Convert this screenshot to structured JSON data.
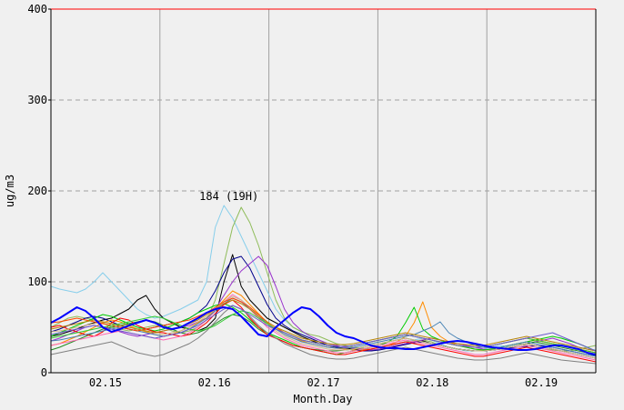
{
  "chart_data": {
    "type": "line",
    "xlabel": "Month.Day",
    "ylabel": "ug/m3",
    "ylim": [
      0,
      400
    ],
    "yticks": [
      "0",
      "100",
      "200",
      "300",
      "400"
    ],
    "xlim": [
      0,
      5
    ],
    "xticks": [
      {
        "label": "02.15",
        "pos": 0.5
      },
      {
        "label": "02.16",
        "pos": 1.5
      },
      {
        "label": "02.17",
        "pos": 2.5
      },
      {
        "label": "02.18",
        "pos": 3.5
      },
      {
        "label": "02.19",
        "pos": 4.5
      }
    ],
    "day_separators": [
      1,
      2,
      3,
      4
    ],
    "grid": true,
    "annotation": {
      "text": "184 (19H)",
      "x": 1.65,
      "y": 184
    },
    "colors": {
      "background": "#f0f0f0",
      "plot_background": "#f0f0f0",
      "max_line": "#ff0000",
      "vertical_grid": "#a0a0a0",
      "horizontal_grid": "#a0a0a0",
      "mean_series": "#0000ff"
    },
    "series": [
      {
        "color": "#0000ff",
        "values": [
          55,
          60,
          66,
          72,
          68,
          60,
          50,
          45,
          48,
          52,
          55,
          58,
          55,
          50,
          48,
          50,
          55,
          60,
          66,
          70,
          72,
          70,
          62,
          52,
          42,
          40,
          50,
          58,
          66,
          72,
          70,
          62,
          52,
          44,
          40,
          38,
          34,
          30,
          28,
          27,
          27,
          26,
          26,
          28,
          30,
          32,
          34,
          35,
          34,
          32,
          30,
          28,
          27,
          26,
          25,
          25,
          26,
          28,
          30,
          30,
          28,
          26,
          22,
          20
        ]
      },
      {
        "color": "#87ceeb",
        "values": [
          95,
          92,
          90,
          88,
          92,
          100,
          110,
          100,
          90,
          80,
          70,
          64,
          60,
          62,
          66,
          70,
          75,
          80,
          100,
          160,
          184,
          170,
          150,
          130,
          110,
          90,
          70,
          58,
          50,
          45,
          40,
          36,
          32,
          30,
          28,
          27,
          26,
          26,
          28,
          30,
          32,
          34,
          36,
          38,
          36,
          32,
          28,
          26,
          24,
          24,
          26,
          28,
          30,
          28,
          26,
          25,
          26,
          28,
          30,
          32,
          30,
          28,
          26,
          25
        ]
      },
      {
        "color": "#8fbc5a",
        "values": [
          50,
          55,
          60,
          62,
          60,
          58,
          55,
          50,
          48,
          46,
          48,
          50,
          52,
          50,
          46,
          44,
          46,
          50,
          58,
          80,
          120,
          160,
          182,
          165,
          140,
          110,
          80,
          60,
          50,
          45,
          42,
          40,
          36,
          32,
          30,
          28,
          27,
          26,
          28,
          30,
          32,
          34,
          35,
          36,
          34,
          30,
          28,
          26,
          25,
          24,
          25,
          26,
          28,
          30,
          32,
          30,
          28,
          26,
          25,
          24,
          24,
          26,
          28,
          30
        ]
      },
      {
        "color": "#000000",
        "values": [
          40,
          42,
          45,
          48,
          52,
          55,
          58,
          60,
          65,
          70,
          80,
          85,
          70,
          60,
          55,
          50,
          48,
          46,
          50,
          60,
          100,
          130,
          95,
          80,
          70,
          60,
          55,
          50,
          45,
          40,
          36,
          32,
          30,
          28,
          27,
          26,
          25,
          24,
          26,
          28,
          30,
          32,
          34,
          35,
          32,
          30,
          28,
          26,
          25,
          24,
          24,
          25,
          26,
          28,
          30,
          32,
          30,
          28,
          26,
          24,
          22,
          20,
          18,
          16
        ]
      },
      {
        "color": "#00008b",
        "values": [
          45,
          48,
          52,
          56,
          60,
          62,
          60,
          56,
          52,
          48,
          46,
          48,
          50,
          52,
          54,
          56,
          60,
          66,
          74,
          90,
          110,
          125,
          128,
          115,
          95,
          75,
          60,
          52,
          46,
          42,
          38,
          34,
          30,
          28,
          26,
          25,
          24,
          24,
          25,
          27,
          29,
          31,
          33,
          34,
          32,
          30,
          28,
          26,
          25,
          24,
          24,
          25,
          26,
          27,
          28,
          29,
          30,
          29,
          28,
          26,
          24,
          22,
          20,
          19
        ]
      },
      {
        "color": "#9932cc",
        "values": [
          35,
          38,
          42,
          46,
          50,
          52,
          50,
          48,
          45,
          42,
          40,
          42,
          44,
          46,
          48,
          50,
          52,
          56,
          60,
          70,
          85,
          100,
          112,
          120,
          128,
          118,
          95,
          70,
          55,
          46,
          40,
          36,
          32,
          30,
          28,
          27,
          26,
          25,
          26,
          28,
          30,
          32,
          34,
          36,
          38,
          36,
          34,
          32,
          30,
          28,
          26,
          25,
          26,
          28,
          30,
          32,
          34,
          36,
          38,
          35,
          32,
          28,
          26,
          24
        ]
      },
      {
        "color": "#ff8c00",
        "values": [
          30,
          32,
          36,
          40,
          45,
          50,
          55,
          58,
          56,
          52,
          48,
          45,
          42,
          40,
          42,
          46,
          50,
          55,
          60,
          70,
          80,
          90,
          85,
          75,
          65,
          55,
          48,
          42,
          38,
          35,
          32,
          30,
          28,
          27,
          26,
          25,
          25,
          26,
          28,
          30,
          34,
          40,
          55,
          78,
          50,
          40,
          34,
          30,
          28,
          26,
          25,
          26,
          28,
          30,
          32,
          34,
          36,
          34,
          32,
          30,
          28,
          26,
          24,
          22
        ]
      },
      {
        "color": "#00cc00",
        "values": [
          40,
          44,
          48,
          52,
          56,
          60,
          64,
          62,
          58,
          54,
          50,
          48,
          46,
          48,
          52,
          56,
          60,
          66,
          70,
          74,
          76,
          72,
          66,
          58,
          50,
          44,
          40,
          36,
          32,
          28,
          26,
          24,
          22,
          20,
          22,
          24,
          26,
          28,
          30,
          34,
          40,
          55,
          72,
          48,
          40,
          36,
          32,
          30,
          28,
          26,
          25,
          26,
          28,
          30,
          32,
          34,
          36,
          38,
          40,
          38,
          35,
          32,
          28,
          24
        ]
      },
      {
        "color": "#228b22",
        "values": [
          25,
          28,
          32,
          36,
          40,
          44,
          48,
          50,
          52,
          54,
          56,
          58,
          56,
          52,
          48,
          44,
          42,
          44,
          48,
          54,
          60,
          64,
          62,
          56,
          48,
          42,
          38,
          34,
          30,
          28,
          26,
          25,
          24,
          24,
          25,
          26,
          28,
          30,
          32,
          34,
          36,
          38,
          36,
          34,
          32,
          30,
          28,
          26,
          25,
          24,
          24,
          25,
          26,
          28,
          30,
          32,
          34,
          32,
          30,
          28,
          26,
          24,
          22,
          20
        ]
      },
      {
        "color": "#ff0000",
        "values": [
          50,
          52,
          48,
          45,
          42,
          40,
          45,
          55,
          60,
          58,
          52,
          48,
          45,
          44,
          42,
          40,
          42,
          48,
          55,
          65,
          75,
          80,
          72,
          60,
          50,
          42,
          38,
          34,
          30,
          28,
          26,
          24,
          22,
          20,
          20,
          22,
          24,
          26,
          28,
          30,
          32,
          34,
          32,
          30,
          28,
          26,
          24,
          22,
          20,
          18,
          18,
          20,
          22,
          24,
          26,
          28,
          26,
          24,
          22,
          20,
          18,
          16,
          14,
          12
        ]
      },
      {
        "color": "#808080",
        "values": [
          20,
          22,
          24,
          26,
          28,
          30,
          32,
          34,
          30,
          26,
          22,
          20,
          18,
          20,
          24,
          28,
          32,
          38,
          46,
          56,
          66,
          74,
          70,
          62,
          52,
          44,
          38,
          32,
          28,
          24,
          20,
          18,
          16,
          15,
          15,
          16,
          18,
          20,
          22,
          24,
          26,
          28,
          26,
          24,
          22,
          20,
          18,
          16,
          15,
          14,
          14,
          15,
          16,
          18,
          20,
          22,
          20,
          18,
          16,
          14,
          13,
          12,
          11,
          10
        ]
      },
      {
        "color": "#ff69b4",
        "values": [
          30,
          32,
          34,
          36,
          38,
          40,
          42,
          44,
          46,
          44,
          42,
          40,
          38,
          36,
          38,
          40,
          44,
          50,
          58,
          68,
          78,
          86,
          80,
          70,
          60,
          50,
          44,
          38,
          34,
          30,
          28,
          26,
          24,
          22,
          22,
          24,
          26,
          28,
          30,
          32,
          34,
          36,
          34,
          32,
          30,
          28,
          26,
          24,
          22,
          20,
          20,
          22,
          24,
          26,
          28,
          30,
          28,
          26,
          24,
          22,
          20,
          18,
          16,
          14
        ]
      },
      {
        "color": "#d2b48c",
        "values": [
          45,
          46,
          48,
          50,
          52,
          54,
          56,
          54,
          52,
          50,
          48,
          46,
          44,
          42,
          44,
          46,
          50,
          56,
          62,
          70,
          78,
          84,
          80,
          72,
          62,
          52,
          46,
          40,
          36,
          32,
          30,
          28,
          26,
          25,
          25,
          26,
          28,
          30,
          32,
          34,
          36,
          38,
          36,
          34,
          32,
          30,
          28,
          26,
          25,
          24,
          24,
          25,
          26,
          28,
          30,
          32,
          30,
          28,
          26,
          24,
          22,
          20,
          18,
          16
        ]
      },
      {
        "color": "#4682b4",
        "values": [
          35,
          36,
          38,
          40,
          42,
          44,
          46,
          48,
          50,
          48,
          46,
          44,
          42,
          40,
          42,
          44,
          48,
          54,
          60,
          68,
          76,
          82,
          78,
          70,
          62,
          54,
          48,
          42,
          38,
          34,
          32,
          30,
          28,
          27,
          27,
          28,
          30,
          32,
          34,
          36,
          38,
          40,
          42,
          46,
          50,
          56,
          44,
          38,
          34,
          30,
          28,
          27,
          28,
          30,
          32,
          34,
          32,
          30,
          28,
          26,
          24,
          22,
          20,
          18
        ]
      },
      {
        "color": "#ff4500",
        "values": [
          55,
          56,
          58,
          60,
          58,
          56,
          54,
          52,
          50,
          48,
          46,
          48,
          50,
          52,
          54,
          56,
          58,
          62,
          66,
          72,
          78,
          82,
          78,
          72,
          64,
          56,
          50,
          44,
          40,
          36,
          34,
          32,
          30,
          29,
          29,
          30,
          32,
          34,
          36,
          38,
          40,
          42,
          40,
          38,
          36,
          34,
          32,
          30,
          29,
          28,
          28,
          30,
          32,
          34,
          36,
          38,
          36,
          34,
          32,
          30,
          28,
          26,
          24,
          22
        ]
      },
      {
        "color": "#b8860b",
        "values": [
          48,
          50,
          52,
          54,
          56,
          58,
          56,
          54,
          52,
          50,
          48,
          46,
          44,
          46,
          48,
          50,
          54,
          58,
          64,
          70,
          76,
          80,
          76,
          70,
          62,
          56,
          50,
          46,
          42,
          38,
          36,
          34,
          32,
          31,
          31,
          32,
          34,
          36,
          38,
          40,
          42,
          44,
          42,
          40,
          38,
          36,
          34,
          32,
          31,
          30,
          30,
          32,
          34,
          36,
          38,
          40,
          38,
          36,
          34,
          32,
          30,
          28,
          26,
          24
        ]
      },
      {
        "color": "#32cd32",
        "values": [
          38,
          40,
          42,
          44,
          46,
          48,
          50,
          52,
          54,
          56,
          58,
          60,
          62,
          60,
          56,
          52,
          48,
          46,
          48,
          52,
          58,
          64,
          68,
          66,
          60,
          54,
          48,
          44,
          40,
          36,
          34,
          32,
          30,
          29,
          29,
          30,
          32,
          34,
          36,
          38,
          40,
          42,
          40,
          38,
          36,
          34,
          32,
          30,
          29,
          28,
          28,
          30,
          32,
          34,
          36,
          38,
          36,
          34,
          32,
          30,
          28,
          26,
          24,
          22
        ]
      },
      {
        "color": "#6a5acd",
        "values": [
          42,
          44,
          46,
          48,
          50,
          52,
          50,
          48,
          46,
          44,
          42,
          40,
          38,
          40,
          42,
          44,
          48,
          52,
          58,
          64,
          70,
          74,
          70,
          64,
          58,
          52,
          48,
          44,
          40,
          36,
          34,
          32,
          30,
          29,
          29,
          30,
          32,
          34,
          36,
          38,
          40,
          42,
          40,
          38,
          36,
          34,
          32,
          30,
          29,
          28,
          28,
          30,
          32,
          34,
          36,
          38,
          40,
          42,
          44,
          40,
          36,
          32,
          28,
          24
        ]
      }
    ]
  }
}
